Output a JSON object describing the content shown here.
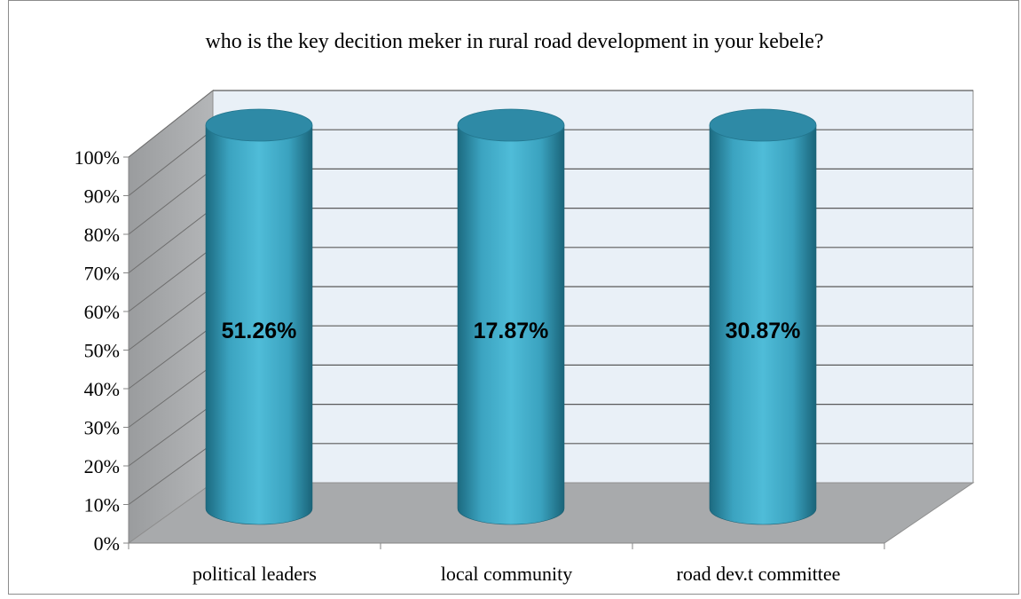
{
  "chart_data": {
    "type": "bar",
    "style": "3d-cylinder",
    "title": "who is the key decition meker in rural road development in your kebele?",
    "xlabel": "",
    "ylabel": "",
    "categories": [
      "political leaders",
      "local community",
      "road dev.t committee"
    ],
    "series": [
      {
        "values": [
          100,
          100,
          100
        ],
        "data_labels": [
          "51.26%",
          "17.87%",
          "30.87%"
        ]
      }
    ],
    "ylim": [
      0,
      100
    ],
    "y_ticks": [
      "0%",
      "10%",
      "20%",
      "30%",
      "40%",
      "50%",
      "60%",
      "70%",
      "80%",
      "90%",
      "100%"
    ],
    "grid": true,
    "legend": "none",
    "colors": {
      "bar": "#3fa9c6",
      "bar_dark": "#1e6e86",
      "bar_top": "#2f8aa5",
      "back_wall": "#e9f0f7",
      "side_wall": "#a7a9ab",
      "floor": "#a7a9ab",
      "gridline": "#595959",
      "label_text": "#000000"
    }
  }
}
